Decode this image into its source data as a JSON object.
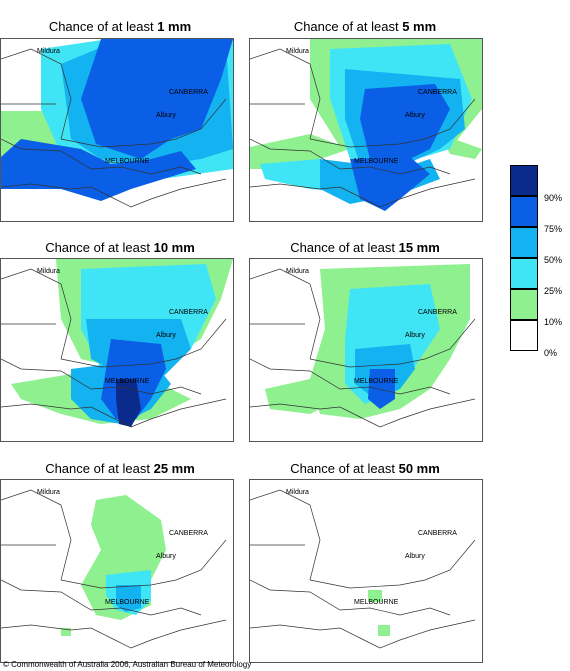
{
  "panels": [
    {
      "prefix": "Chance of at least ",
      "amount": "1 mm"
    },
    {
      "prefix": "Chance of at least ",
      "amount": "5 mm"
    },
    {
      "prefix": "Chance of at least ",
      "amount": "10 mm"
    },
    {
      "prefix": "Chance of at least ",
      "amount": "15 mm"
    },
    {
      "prefix": "Chance of at least ",
      "amount": "25 mm"
    },
    {
      "prefix": "Chance of at least ",
      "amount": "50 mm"
    }
  ],
  "places": {
    "mildura": "Mildura",
    "canberra": "CANBERRA",
    "albury": "Albury",
    "melbourne": "MELBOURNE"
  },
  "legend": {
    "labels": [
      "90%",
      "75%",
      "50%",
      "25%",
      "10%",
      "0%"
    ],
    "colors": [
      "#0a2a8c",
      "#0a5fe6",
      "#13b2f0",
      "#40e5f5",
      "#8ff08f",
      "#ffffff"
    ]
  },
  "copyright": "© Commonwealth of Australia 2006, Australian Bureau of Meteorology"
}
